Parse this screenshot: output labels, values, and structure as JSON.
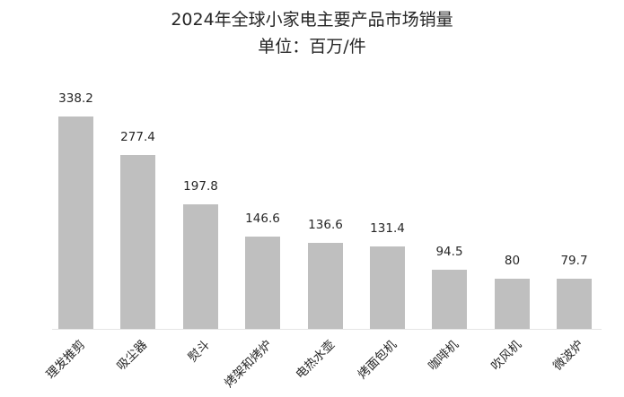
{
  "title": "2024年全球小家电主要产品市场销量",
  "subtitle": "单位：百万/件",
  "chart_data": {
    "type": "bar",
    "title": "2024年全球小家电主要产品市场销量",
    "subtitle": "单位：百万/件",
    "xlabel": "",
    "ylabel": "",
    "unit": "百万/件",
    "categories": [
      "理发推剪",
      "吸尘器",
      "熨斗",
      "烤架和烤炉",
      "电热水壶",
      "烤面包机",
      "咖啡机",
      "吹风机",
      "微波炉"
    ],
    "values": [
      338.2,
      277.4,
      197.8,
      146.6,
      136.6,
      131.4,
      94.5,
      80,
      79.7
    ],
    "value_labels": [
      "338.2",
      "277.4",
      "197.8",
      "146.6",
      "136.6",
      "131.4",
      "94.5",
      "80",
      "79.7"
    ],
    "ylim": [
      0,
      338.2
    ],
    "grid": false,
    "legend": "none",
    "bar_color": "#bfbfbf",
    "data_labels": true,
    "x_tick_rotation": -45
  }
}
